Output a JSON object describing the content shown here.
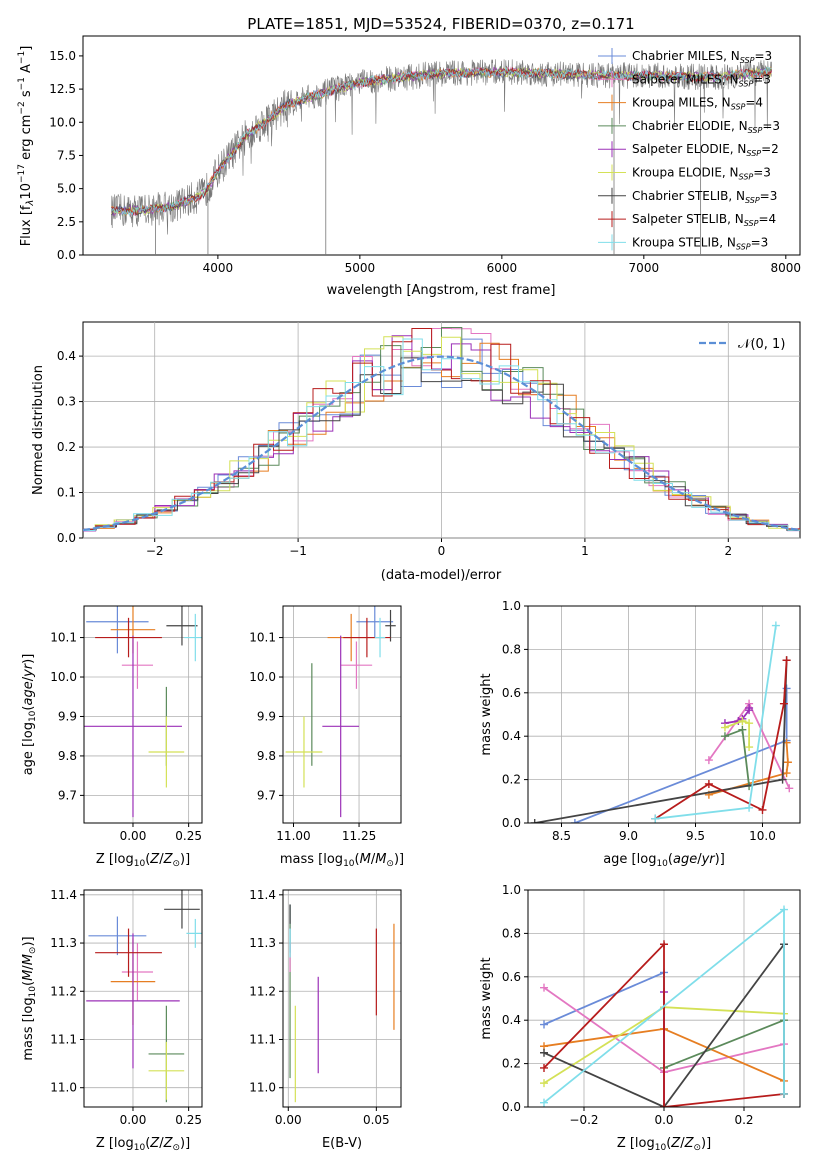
{
  "chart_data": [
    {
      "id": "spectrum",
      "type": "line",
      "title": "PLATE=1851, MJD=53524, FIBERID=0370, z=0.171",
      "xlabel": "wavelength [Angstrom, rest frame]",
      "ylabel": "Flux [f_λ 10^-17 erg cm^-2 s^-1 A^-1]",
      "xlim": [
        3050,
        8100
      ],
      "ylim": [
        0,
        16.5
      ],
      "xticks": [
        "4000",
        "5000",
        "6000",
        "7000",
        "8000"
      ],
      "yticks": [
        "0.0",
        "2.5",
        "5.0",
        "7.5",
        "10.0",
        "12.5",
        "15.0"
      ],
      "data_trend": {
        "x": [
          3250,
          3500,
          3700,
          3900,
          4000,
          4200,
          4500,
          4800,
          5000,
          5300,
          5600,
          6000,
          6500,
          7000,
          7500,
          7900
        ],
        "y": [
          3.3,
          3.4,
          3.7,
          4.6,
          6.3,
          9.0,
          11.4,
          12.4,
          13.0,
          13.4,
          13.7,
          13.8,
          13.6,
          13.5,
          13.4,
          13.8
        ]
      },
      "legend": [
        {
          "name": "Chabrier MILES, N_SSP=3",
          "color": "#6a8bd8"
        },
        {
          "name": "Salpeter MILES, N_SSP=3",
          "color": "#e377c2"
        },
        {
          "name": "Kroupa MILES, N_SSP=4",
          "color": "#e67e22"
        },
        {
          "name": "Chabrier ELODIE, N_SSP=3",
          "color": "#5b8a5b"
        },
        {
          "name": "Salpeter ELODIE, N_SSP=2",
          "color": "#9b30b7"
        },
        {
          "name": "Kroupa ELODIE, N_SSP=3",
          "color": "#d4e157"
        },
        {
          "name": "Chabrier STELIB, N_SSP=3",
          "color": "#444444"
        },
        {
          "name": "Salpeter STELIB, N_SSP=4",
          "color": "#b71c1c"
        },
        {
          "name": "Kroupa STELIB, N_SSP=3",
          "color": "#80deea"
        }
      ],
      "legend_labels": [
        {
          "pre": "Chabrier MILES, N",
          "sub": "SSP",
          "post": "=3"
        },
        {
          "pre": "Salpeter MILES, N",
          "sub": "SSP",
          "post": "=3"
        },
        {
          "pre": "Kroupa MILES, N",
          "sub": "SSP",
          "post": "=4"
        },
        {
          "pre": "Chabrier ELODIE, N",
          "sub": "SSP",
          "post": "=3"
        },
        {
          "pre": "Salpeter ELODIE, N",
          "sub": "SSP",
          "post": "=2"
        },
        {
          "pre": "Kroupa ELODIE, N",
          "sub": "SSP",
          "post": "=3"
        },
        {
          "pre": "Chabrier STELIB, N",
          "sub": "SSP",
          "post": "=3"
        },
        {
          "pre": "Salpeter STELIB, N",
          "sub": "SSP",
          "post": "=4"
        },
        {
          "pre": "Kroupa STELIB, N",
          "sub": "SSP",
          "post": "=3"
        }
      ],
      "legend_position": "upper-right"
    },
    {
      "id": "residuals",
      "type": "line",
      "xlabel": "(data-model)/error",
      "ylabel": "Normed distribution",
      "xlim": [
        -2.5,
        2.5
      ],
      "ylim": [
        0,
        0.475
      ],
      "xticks": [
        "−2",
        "−1",
        "0",
        "1",
        "2"
      ],
      "yticks": [
        "0.0",
        "0.1",
        "0.2",
        "0.3",
        "0.4"
      ],
      "legend": "𝒩(0, 1)",
      "legend_position": "upper-right",
      "gaussian": {
        "mean": 0,
        "sigma": 1
      }
    },
    {
      "id": "age_vs_Z",
      "type": "scatter",
      "xlabel": "Z [log10(Z/Z⊙)]",
      "ylabel": "age [log10(age/yr)]",
      "xlim": [
        -0.22,
        0.31
      ],
      "ylim": [
        9.63,
        10.18
      ],
      "xticks": [
        "0.00",
        "0.25"
      ],
      "yticks": [
        "9.7",
        "9.8",
        "9.9",
        "10.0",
        "10.1"
      ],
      "points": [
        {
          "x": -0.07,
          "y": 10.14,
          "xerr": 0.14,
          "yerr": 0.08,
          "series": 0
        },
        {
          "x": 0.02,
          "y": 10.03,
          "xerr": 0.07,
          "yerr": 0.06,
          "series": 1
        },
        {
          "x": 0.0,
          "y": 10.12,
          "xerr": 0.1,
          "yerr": 0.06,
          "series": 2
        },
        {
          "x": 0.15,
          "y": 9.875,
          "xerr": 0.0,
          "yerr": 0.1,
          "series": 3
        },
        {
          "x": 0.0,
          "y": 9.875,
          "xerr": 0.22,
          "yerr": 0.23,
          "series": 4
        },
        {
          "x": 0.15,
          "y": 9.81,
          "xerr": 0.08,
          "yerr": 0.09,
          "series": 5
        },
        {
          "x": 0.22,
          "y": 10.13,
          "xerr": 0.07,
          "yerr": 0.05,
          "series": 6
        },
        {
          "x": -0.02,
          "y": 10.1,
          "xerr": 0.15,
          "yerr": 0.05,
          "series": 7
        },
        {
          "x": 0.28,
          "y": 10.1,
          "xerr": 0.05,
          "yerr": 0.06,
          "series": 8
        }
      ]
    },
    {
      "id": "age_vs_mass",
      "type": "scatter",
      "xlabel": "mass [log10(M/M⊙)]",
      "ylabel": "",
      "xlim": [
        10.96,
        11.41
      ],
      "ylim": [
        9.63,
        10.18
      ],
      "xticks": [
        "11.00",
        "11.25"
      ],
      "yticks": [
        "9.7",
        "9.8",
        "9.9",
        "10.0",
        "10.1"
      ],
      "points": [
        {
          "x": 11.31,
          "y": 10.14,
          "xerr": 0.07,
          "yerr": 0.04,
          "series": 0
        },
        {
          "x": 11.24,
          "y": 10.03,
          "xerr": 0.06,
          "yerr": 0.06,
          "series": 1
        },
        {
          "x": 11.22,
          "y": 10.1,
          "xerr": 0.09,
          "yerr": 0.06,
          "series": 2
        },
        {
          "x": 11.07,
          "y": 9.905,
          "xerr": 0.0,
          "yerr": 0.13,
          "series": 3
        },
        {
          "x": 11.18,
          "y": 9.875,
          "xerr": 0.07,
          "yerr": 0.23,
          "series": 4
        },
        {
          "x": 11.04,
          "y": 9.81,
          "xerr": 0.07,
          "yerr": 0.09,
          "series": 5
        },
        {
          "x": 11.37,
          "y": 10.13,
          "xerr": 0.02,
          "yerr": 0.04,
          "series": 6
        },
        {
          "x": 11.28,
          "y": 10.1,
          "xerr": 0.09,
          "yerr": 0.05,
          "series": 7
        },
        {
          "x": 11.33,
          "y": 10.1,
          "xerr": 0.02,
          "yerr": 0.05,
          "series": 8
        }
      ]
    },
    {
      "id": "massweight_vs_age",
      "type": "line",
      "xlabel": "age [log10(age/yr)]",
      "ylabel": "mass weight",
      "xlim": [
        8.25,
        10.28
      ],
      "ylim": [
        0,
        1.0
      ],
      "xticks": [
        "8.5",
        "9.0",
        "9.5",
        "10.0"
      ],
      "yticks": [
        "0.0",
        "0.2",
        "0.4",
        "0.6",
        "0.8",
        "1.0"
      ],
      "series": [
        {
          "x": [
            8.6,
            10.18,
            10.18
          ],
          "y": [
            0.0,
            0.38,
            0.62
          ]
        },
        {
          "x": [
            9.6,
            9.9,
            10.2
          ],
          "y": [
            0.29,
            0.55,
            0.16
          ]
        },
        {
          "x": [
            9.6,
            10.18,
            10.19,
            10.18
          ],
          "y": [
            0.13,
            0.23,
            0.28,
            0.37
          ]
        },
        {
          "x": [
            9.72,
            9.85,
            9.9
          ],
          "y": [
            0.4,
            0.43,
            0.17
          ]
        },
        {
          "x": [
            9.72,
            9.82,
            9.85,
            9.9,
            9.9
          ],
          "y": [
            0.46,
            0.47,
            0.48,
            0.52,
            0.53
          ]
        },
        {
          "x": [
            9.72,
            9.85,
            9.9,
            9.9
          ],
          "y": [
            0.44,
            0.47,
            0.46,
            0.35
          ]
        },
        {
          "x": [
            8.3,
            10.15,
            10.18
          ],
          "y": [
            0.0,
            0.2,
            0.75
          ]
        },
        {
          "x": [
            9.2,
            9.6,
            10.0,
            10.16,
            10.18
          ],
          "y": [
            0.02,
            0.18,
            0.06,
            0.55,
            0.75
          ]
        },
        {
          "x": [
            9.2,
            9.9,
            10.1
          ],
          "y": [
            0.02,
            0.07,
            0.91
          ]
        }
      ]
    },
    {
      "id": "mass_vs_Z",
      "type": "scatter",
      "xlabel": "Z [log10(Z/Z⊙)]",
      "ylabel": "mass [log10(M/M⊙)]",
      "xlim": [
        -0.22,
        0.31
      ],
      "ylim": [
        10.96,
        11.41
      ],
      "xticks": [
        "0.00",
        "0.25"
      ],
      "yticks": [
        "11.0",
        "11.1",
        "11.2",
        "11.3",
        "11.4"
      ],
      "points": [
        {
          "x": -0.07,
          "y": 11.315,
          "xerr": 0.13,
          "yerr": 0.04,
          "series": 0
        },
        {
          "x": 0.02,
          "y": 11.24,
          "xerr": 0.07,
          "yerr": 0.06,
          "series": 1
        },
        {
          "x": 0.0,
          "y": 11.22,
          "xerr": 0.1,
          "yerr": 0.09,
          "series": 2
        },
        {
          "x": 0.15,
          "y": 11.07,
          "xerr": 0.08,
          "yerr": 0.1,
          "series": 3
        },
        {
          "x": 0.0,
          "y": 11.18,
          "xerr": 0.21,
          "yerr": 0.14,
          "series": 4
        },
        {
          "x": 0.15,
          "y": 11.035,
          "xerr": 0.08,
          "yerr": 0.06,
          "series": 5
        },
        {
          "x": 0.22,
          "y": 11.37,
          "xerr": 0.08,
          "yerr": 0.04,
          "series": 6
        },
        {
          "x": -0.02,
          "y": 11.28,
          "xerr": 0.15,
          "yerr": 0.05,
          "series": 7
        },
        {
          "x": 0.28,
          "y": 11.32,
          "xerr": 0.04,
          "yerr": 0.03,
          "series": 8
        }
      ]
    },
    {
      "id": "mass_vs_EBV",
      "type": "scatter",
      "xlabel": "E(B-V)",
      "ylabel": "",
      "xlim": [
        -0.003,
        0.064
      ],
      "ylim": [
        10.96,
        11.41
      ],
      "xticks": [
        "0.00",
        "0.05"
      ],
      "yticks": [
        "11.0",
        "11.1",
        "11.2",
        "11.3",
        "11.4"
      ],
      "points": [
        {
          "x": 0.001,
          "y": 11.33,
          "yerr": 0.05,
          "series": 0
        },
        {
          "x": 0.001,
          "y": 11.2,
          "yerr": 0.18,
          "series": 3
        },
        {
          "x": 0.004,
          "y": 11.07,
          "yerr": 0.1,
          "series": 5
        },
        {
          "x": 0.017,
          "y": 11.13,
          "yerr": 0.1,
          "series": 4
        },
        {
          "x": 0.05,
          "y": 11.24,
          "yerr": 0.09,
          "series": 7
        },
        {
          "x": 0.06,
          "y": 11.23,
          "yerr": 0.11,
          "series": 2
        },
        {
          "x": 0.001,
          "y": 11.36,
          "yerr": 0.02,
          "series": 6
        },
        {
          "x": 0.001,
          "y": 11.27,
          "yerr": 0.03,
          "series": 1
        },
        {
          "x": 0.001,
          "y": 11.3,
          "yerr": 0.03,
          "series": 8
        }
      ]
    },
    {
      "id": "massweight_vs_Z",
      "type": "line",
      "xlabel": "Z [log10(Z/Z⊙)]",
      "ylabel": "mass weight",
      "xlim": [
        -0.34,
        0.34
      ],
      "ylim": [
        0,
        1.0
      ],
      "xticks": [
        "−0.2",
        "0.0",
        "0.2"
      ],
      "yticks": [
        "0.0",
        "0.2",
        "0.4",
        "0.6",
        "0.8",
        "1.0"
      ],
      "series": [
        {
          "x": [
            -0.3,
            0.0,
            0.0
          ],
          "y": [
            0.38,
            0.62,
            0.0
          ]
        },
        {
          "x": [
            -0.3,
            0.0,
            0.3
          ],
          "y": [
            0.55,
            0.16,
            0.29
          ]
        },
        {
          "x": [
            -0.3,
            0.0,
            0.3
          ],
          "y": [
            0.28,
            0.36,
            0.12
          ]
        },
        {
          "x": [
            0.0,
            0.3,
            0.3
          ],
          "y": [
            0.18,
            0.4,
            0.06
          ]
        },
        {
          "x": [
            0.0,
            0.0
          ],
          "y": [
            0.53,
            0.0
          ]
        },
        {
          "x": [
            -0.3,
            0.0,
            0.3
          ],
          "y": [
            0.11,
            0.46,
            0.43
          ]
        },
        {
          "x": [
            -0.3,
            0.0,
            0.3,
            0.3
          ],
          "y": [
            0.25,
            0.0,
            0.75,
            0.06
          ]
        },
        {
          "x": [
            -0.3,
            0.0,
            0.0,
            0.3
          ],
          "y": [
            0.18,
            0.75,
            0.0,
            0.06
          ]
        },
        {
          "x": [
            -0.3,
            0.3,
            0.3
          ],
          "y": [
            0.02,
            0.91,
            0.06
          ]
        }
      ]
    }
  ]
}
